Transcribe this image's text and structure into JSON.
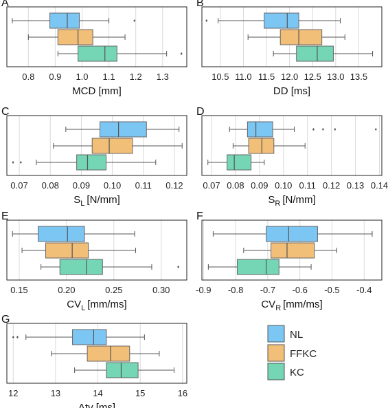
{
  "colors": {
    "NL": "#7cc6f4",
    "FFKC": "#f2bf78",
    "KC": "#74d6b4",
    "frame": "#222222",
    "whisker": "#555555",
    "grid": "#d9d9d9"
  },
  "legend": {
    "placement": "bottom-right",
    "items": [
      {
        "key": "NL",
        "label": "NL"
      },
      {
        "key": "FFKC",
        "label": "FFKC"
      },
      {
        "key": "KC",
        "label": "KC"
      }
    ]
  },
  "chart_data": [
    {
      "id": "A",
      "letter": "A",
      "type": "box",
      "orientation": "horizontal",
      "xlabel_main": "MCD [mm]",
      "xlabel_sub": "",
      "xlabel_tail": "",
      "xlim": [
        0.72,
        1.39
      ],
      "ticks": [
        0.8,
        0.9,
        1.0,
        1.1,
        1.2,
        1.3
      ],
      "tick_labels": [
        "0.8",
        "0.9",
        "1.0",
        "1.1",
        "1.2",
        "1.3"
      ],
      "series": [
        {
          "name": "NL",
          "whisker_low": 0.74,
          "q1": 0.88,
          "median": 0.945,
          "q3": 0.99,
          "whisker_high": 1.1,
          "outliers": [
            1.195
          ]
        },
        {
          "name": "FFKC",
          "whisker_low": 0.8,
          "q1": 0.91,
          "median": 0.985,
          "q3": 1.04,
          "whisker_high": 1.16,
          "outliers": []
        },
        {
          "name": "KC",
          "whisker_low": 0.91,
          "q1": 0.985,
          "median": 1.085,
          "q3": 1.13,
          "whisker_high": 1.315,
          "outliers": [
            1.37
          ]
        }
      ]
    },
    {
      "id": "B",
      "letter": "B",
      "type": "box",
      "orientation": "horizontal",
      "xlabel_main": "DD [ms]",
      "xlabel_sub": "",
      "xlabel_tail": "",
      "xlim": [
        10.1,
        14.0
      ],
      "ticks": [
        10.5,
        11.0,
        11.5,
        12.0,
        12.5,
        13.0,
        13.5
      ],
      "tick_labels": [
        "10.5",
        "11.0",
        "11.5",
        "12.0",
        "12.5",
        "13.0",
        "13.5"
      ],
      "series": [
        {
          "name": "NL",
          "whisker_low": 10.45,
          "q1": 11.45,
          "median": 11.95,
          "q3": 12.2,
          "whisker_high": 13.1,
          "outliers": [
            10.2
          ]
        },
        {
          "name": "FFKC",
          "whisker_low": 11.1,
          "q1": 11.8,
          "median": 12.2,
          "q3": 12.7,
          "whisker_high": 13.2,
          "outliers": []
        },
        {
          "name": "KC",
          "whisker_low": 11.65,
          "q1": 12.15,
          "median": 12.6,
          "q3": 12.95,
          "whisker_high": 13.8,
          "outliers": []
        }
      ]
    },
    {
      "id": "C",
      "letter": "C",
      "type": "box",
      "orientation": "horizontal",
      "xlabel_main": "S",
      "xlabel_sub": "L",
      "xlabel_tail": "[N/mm]",
      "xlim": [
        0.066,
        0.124
      ],
      "ticks": [
        0.07,
        0.08,
        0.09,
        0.1,
        0.11,
        0.12
      ],
      "tick_labels": [
        "0.07",
        "0.08",
        "0.09",
        "0.10",
        "0.11",
        "0.12"
      ],
      "series": [
        {
          "name": "NL",
          "whisker_low": 0.085,
          "q1": 0.096,
          "median": 0.102,
          "q3": 0.111,
          "whisker_high": 0.1215,
          "outliers": []
        },
        {
          "name": "FFKC",
          "whisker_low": 0.081,
          "q1": 0.0935,
          "median": 0.099,
          "q3": 0.1065,
          "whisker_high": 0.1225,
          "outliers": []
        },
        {
          "name": "KC",
          "whisker_low": 0.0755,
          "q1": 0.0885,
          "median": 0.092,
          "q3": 0.098,
          "whisker_high": 0.114,
          "outliers": [
            0.068,
            0.0705
          ]
        }
      ]
    },
    {
      "id": "D",
      "letter": "D",
      "type": "box",
      "orientation": "horizontal",
      "xlabel_main": "S",
      "xlabel_sub": "R",
      "xlabel_tail": "[N/mm]",
      "xlim": [
        0.066,
        0.141
      ],
      "ticks": [
        0.07,
        0.08,
        0.09,
        0.1,
        0.11,
        0.12,
        0.13,
        0.14
      ],
      "tick_labels": [
        "0.07",
        "0.08",
        "0.09",
        "0.10",
        "0.11",
        "0.12",
        "0.13",
        "0.14"
      ],
      "series": [
        {
          "name": "NL",
          "whisker_low": 0.0775,
          "q1": 0.085,
          "median": 0.0885,
          "q3": 0.0955,
          "whisker_high": 0.1045,
          "outliers": [
            0.1125,
            0.1165,
            0.1215,
            0.1385
          ]
        },
        {
          "name": "FFKC",
          "whisker_low": 0.079,
          "q1": 0.0855,
          "median": 0.091,
          "q3": 0.096,
          "whisker_high": 0.109,
          "outliers": []
        },
        {
          "name": "KC",
          "whisker_low": 0.0685,
          "q1": 0.0765,
          "median": 0.0795,
          "q3": 0.0865,
          "whisker_high": 0.092,
          "outliers": []
        }
      ]
    },
    {
      "id": "E",
      "letter": "E",
      "type": "box",
      "orientation": "horizontal",
      "xlabel_main": "CV",
      "xlabel_sub": "L",
      "xlabel_tail": "[mm/ms]",
      "xlim": [
        0.137,
        0.327
      ],
      "ticks": [
        0.15,
        0.2,
        0.25,
        0.3
      ],
      "tick_labels": [
        "0.15",
        "0.20",
        "0.25",
        "0.30"
      ],
      "series": [
        {
          "name": "NL",
          "whisker_low": 0.143,
          "q1": 0.17,
          "median": 0.201,
          "q3": 0.219,
          "whisker_high": 0.272,
          "outliers": []
        },
        {
          "name": "FFKC",
          "whisker_low": 0.153,
          "q1": 0.178,
          "median": 0.206,
          "q3": 0.223,
          "whisker_high": 0.273,
          "outliers": []
        },
        {
          "name": "KC",
          "whisker_low": 0.173,
          "q1": 0.193,
          "median": 0.221,
          "q3": 0.238,
          "whisker_high": 0.29,
          "outliers": [
            0.318
          ]
        }
      ]
    },
    {
      "id": "F",
      "letter": "F",
      "type": "box",
      "orientation": "horizontal",
      "xlabel_main": "CV",
      "xlabel_sub": "R",
      "xlabel_tail": "[mm/ms]",
      "xlim": [
        -0.905,
        -0.345
      ],
      "ticks": [
        -0.9,
        -0.8,
        -0.7,
        -0.6,
        -0.5,
        -0.4
      ],
      "tick_labels": [
        "-0.9",
        "-0.8",
        "-0.7",
        "-0.6",
        "-0.5",
        "-0.4"
      ],
      "series": [
        {
          "name": "NL",
          "whisker_low": -0.87,
          "q1": -0.705,
          "median": -0.635,
          "q3": -0.545,
          "whisker_high": -0.375,
          "outliers": []
        },
        {
          "name": "FFKC",
          "whisker_low": -0.775,
          "q1": -0.69,
          "median": -0.64,
          "q3": -0.555,
          "whisker_high": -0.485,
          "outliers": []
        },
        {
          "name": "KC",
          "whisker_low": -0.885,
          "q1": -0.795,
          "median": -0.705,
          "q3": -0.665,
          "whisker_high": -0.565,
          "outliers": []
        }
      ]
    },
    {
      "id": "G",
      "letter": "G",
      "type": "box",
      "orientation": "horizontal",
      "xlabel_main": "Δtv [ms]",
      "xlabel_sub": "",
      "xlabel_tail": "",
      "xlim": [
        11.85,
        16.1
      ],
      "ticks": [
        12,
        13,
        14,
        15,
        16
      ],
      "tick_labels": [
        "12",
        "13",
        "14",
        "15",
        "16"
      ],
      "series": [
        {
          "name": "NL",
          "whisker_low": 12.3,
          "q1": 13.4,
          "median": 13.9,
          "q3": 14.2,
          "whisker_high": 15.1,
          "outliers": [
            12.0,
            12.1
          ]
        },
        {
          "name": "FFKC",
          "whisker_low": 12.9,
          "q1": 13.75,
          "median": 14.3,
          "q3": 14.75,
          "whisker_high": 15.45,
          "outliers": []
        },
        {
          "name": "KC",
          "whisker_low": 13.45,
          "q1": 14.2,
          "median": 14.55,
          "q3": 14.95,
          "whisker_high": 15.8,
          "outliers": []
        }
      ]
    }
  ]
}
